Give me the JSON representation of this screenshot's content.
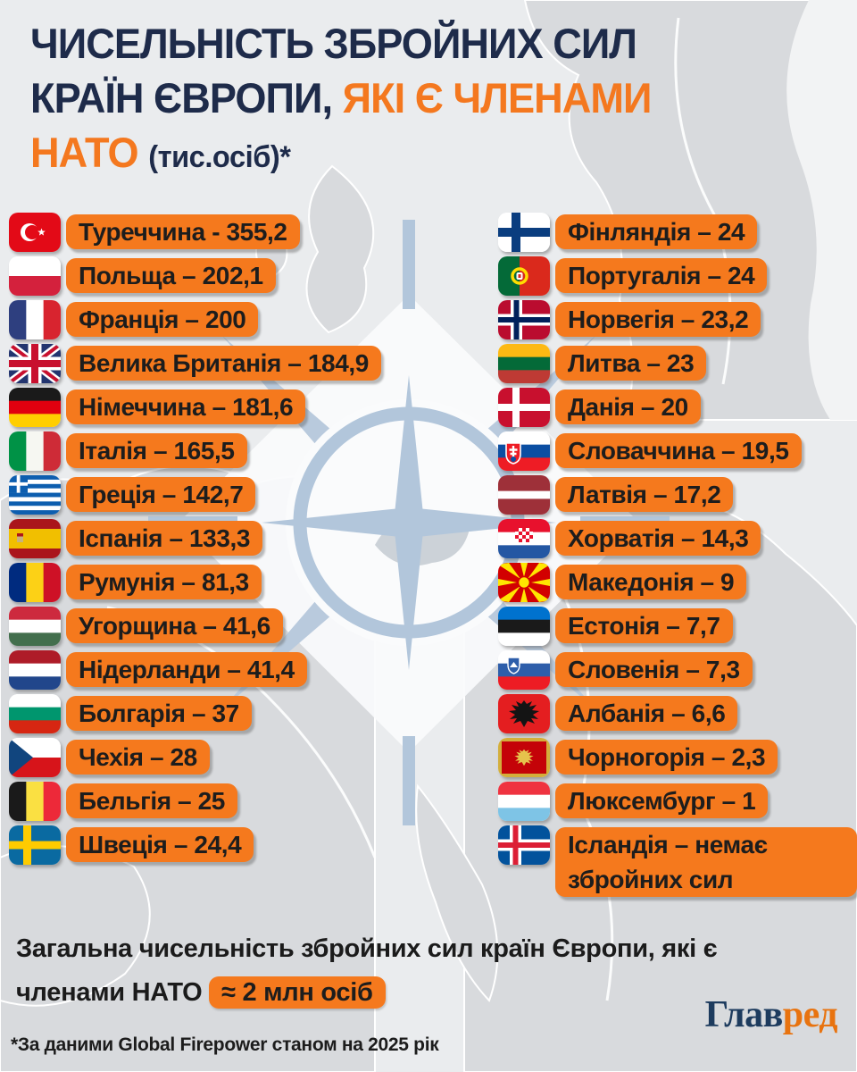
{
  "title": {
    "line1": "ЧИСЕЛЬНІСТЬ ЗБРОЙНИХ СИЛ",
    "line2_dark": "КРАЇН ЄВРОПИ, ",
    "line2_orange": "ЯКІ Є ЧЛЕНАМИ",
    "line3_orange": "НАТО ",
    "line3_unit": "(тис.осіб)*"
  },
  "columns": {
    "left": [
      {
        "flag": "turkey",
        "label": "Туреччина - 355,2"
      },
      {
        "flag": "poland",
        "label": "Польща – 202,1"
      },
      {
        "flag": "france",
        "label": "Франція – 200"
      },
      {
        "flag": "uk",
        "label": "Велика Британія – 184,9"
      },
      {
        "flag": "germany",
        "label": "Німеччина – 181,6"
      },
      {
        "flag": "italy",
        "label": "Італія – 165,5"
      },
      {
        "flag": "greece",
        "label": "Греція – 142,7"
      },
      {
        "flag": "spain",
        "label": "Іспанія – 133,3"
      },
      {
        "flag": "romania",
        "label": "Румунія – 81,3"
      },
      {
        "flag": "hungary",
        "label": "Угорщина – 41,6"
      },
      {
        "flag": "netherlands",
        "label": "Нідерланди – 41,4"
      },
      {
        "flag": "bulgaria",
        "label": "Болгарія – 37"
      },
      {
        "flag": "czechia",
        "label": "Чехія – 28"
      },
      {
        "flag": "belgium",
        "label": "Бельгія – 25"
      },
      {
        "flag": "sweden",
        "label": "Швеція – 24,4"
      }
    ],
    "right": [
      {
        "flag": "finland",
        "label": "Фінляндія – 24"
      },
      {
        "flag": "portugal",
        "label": "Португалія – 24"
      },
      {
        "flag": "norway",
        "label": "Норвегія – 23,2"
      },
      {
        "flag": "lithuania",
        "label": "Литва – 23"
      },
      {
        "flag": "denmark",
        "label": "Данія – 20"
      },
      {
        "flag": "slovakia",
        "label": "Словаччина – 19,5"
      },
      {
        "flag": "latvia",
        "label": "Латвія – 17,2"
      },
      {
        "flag": "croatia",
        "label": "Хорватія – 14,3"
      },
      {
        "flag": "macedonia",
        "label": "Македонія – 9"
      },
      {
        "flag": "estonia",
        "label": "Естонія – 7,7"
      },
      {
        "flag": "slovenia",
        "label": "Словенія – 7,3"
      },
      {
        "flag": "albania",
        "label": "Албанія – 6,6"
      },
      {
        "flag": "montenegro",
        "label": "Чорногорія – 2,3"
      },
      {
        "flag": "luxembourg",
        "label": "Люксембург – 1"
      },
      {
        "flag": "iceland",
        "label": "Ісландія – немає збройних сил",
        "tall": true
      }
    ]
  },
  "summary": {
    "line1": "Загальна чисельність збройних сил країн Європи, які є",
    "line2": "членами НАТО ",
    "badge": "≈ 2 млн осіб"
  },
  "footnote": "*За даними Global Firepower станом на 2025 рік",
  "logo": {
    "dark": "Глав",
    "orange": "ред"
  },
  "colors": {
    "accent_orange": "#F5791D",
    "title_navy": "#1E2B4A",
    "title_orange": "#F4781F",
    "pill_text": "#1D1D1D",
    "logo_navy": "#1D3B5E",
    "logo_orange": "#E8730F",
    "background": "#EAECEE",
    "map_land": "#D8DADD",
    "compass_blue": "#B2C6DB"
  },
  "icons": [
    "nato-compass-icon",
    "country flag icons (30)"
  ],
  "chart_data": {
    "type": "table",
    "title": "Чисельність збройних сил країн Європи, які є членами НАТО (тис.осіб)",
    "unit": "тис. осіб",
    "source_note": "*За даними Global Firepower станом на 2025 рік",
    "total_note": "Загальна чисельність збройних сил країн Європи, які є членами НАТО ≈ 2 млн осіб",
    "categories": [
      "Туреччина",
      "Польща",
      "Франція",
      "Велика Британія",
      "Німеччина",
      "Італія",
      "Греція",
      "Іспанія",
      "Румунія",
      "Угорщина",
      "Нідерланди",
      "Болгарія",
      "Чехія",
      "Бельгія",
      "Швеція",
      "Фінляндія",
      "Португалія",
      "Норвегія",
      "Литва",
      "Данія",
      "Словаччина",
      "Латвія",
      "Хорватія",
      "Македонія",
      "Естонія",
      "Словенія",
      "Албанія",
      "Чорногорія",
      "Люксембург",
      "Ісландія"
    ],
    "values": [
      355.2,
      202.1,
      200,
      184.9,
      181.6,
      165.5,
      142.7,
      133.3,
      81.3,
      41.6,
      41.4,
      37,
      28,
      25,
      24.4,
      24,
      24,
      23.2,
      23,
      20,
      19.5,
      17.2,
      14.3,
      9,
      7.7,
      7.3,
      6.6,
      2.3,
      1,
      null
    ],
    "iceland_note": "немає збройних сил"
  }
}
